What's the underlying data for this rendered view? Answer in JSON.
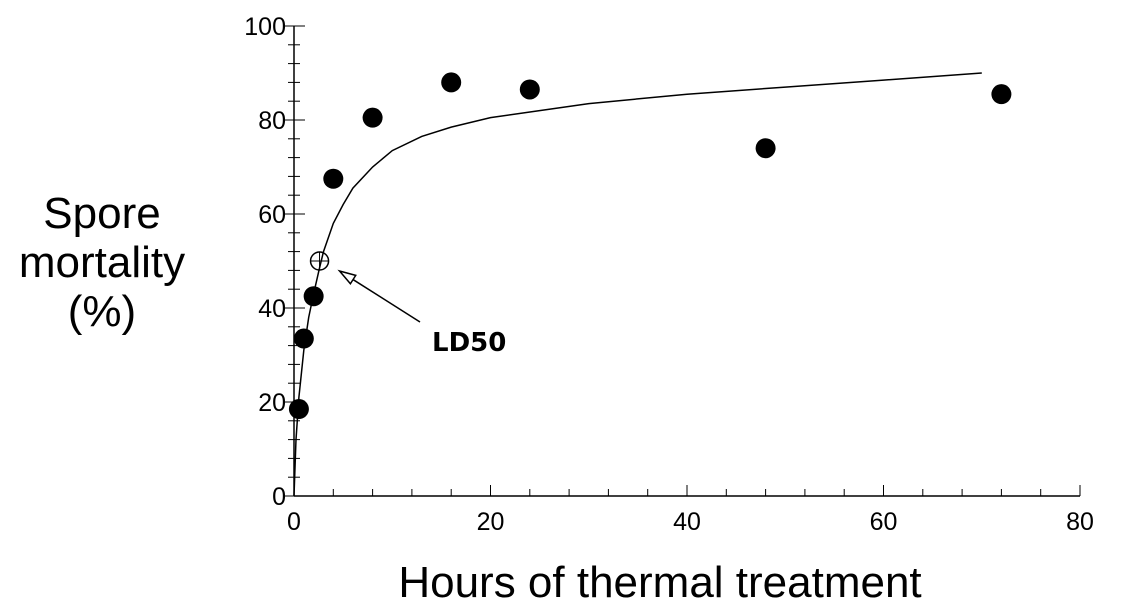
{
  "chart_data": {
    "type": "scatter",
    "title": "",
    "xlabel": "Hours of thermal treatment",
    "ylabel_lines": [
      "Spore",
      "mortality",
      "(%)"
    ],
    "xlim": [
      0,
      80
    ],
    "ylim": [
      0,
      100
    ],
    "x_ticks": [
      "0",
      "20",
      "40",
      "60",
      "80"
    ],
    "y_ticks": [
      "0",
      "20",
      "40",
      "60",
      "80",
      "100"
    ],
    "x_minor_step": 4,
    "y_minor_step": 4,
    "grid": false,
    "legend": "none",
    "series": [
      {
        "points": [
          {
            "x": 0.5,
            "y": 18.5
          },
          {
            "x": 1,
            "y": 33.5
          },
          {
            "x": 2,
            "y": 42.5
          },
          {
            "x": 4,
            "y": 67.5
          },
          {
            "x": 8,
            "y": 80.5
          },
          {
            "x": 16,
            "y": 88
          },
          {
            "x": 24,
            "y": 86.5
          },
          {
            "x": 48,
            "y": 74
          },
          {
            "x": 72,
            "y": 85.5
          }
        ]
      }
    ],
    "fit_curve": {
      "points": [
        {
          "x": 0,
          "y": 0
        },
        {
          "x": 0.2,
          "y": 12
        },
        {
          "x": 0.5,
          "y": 21
        },
        {
          "x": 1,
          "y": 31
        },
        {
          "x": 1.5,
          "y": 38
        },
        {
          "x": 2,
          "y": 43
        },
        {
          "x": 2.6,
          "y": 48.5
        },
        {
          "x": 3,
          "y": 52
        },
        {
          "x": 4,
          "y": 58
        },
        {
          "x": 5,
          "y": 62
        },
        {
          "x": 6,
          "y": 65.5
        },
        {
          "x": 8,
          "y": 70
        },
        {
          "x": 10,
          "y": 73.5
        },
        {
          "x": 13,
          "y": 76.5
        },
        {
          "x": 16,
          "y": 78.5
        },
        {
          "x": 20,
          "y": 80.5
        },
        {
          "x": 25,
          "y": 82
        },
        {
          "x": 30,
          "y": 83.5
        },
        {
          "x": 40,
          "y": 85.5
        },
        {
          "x": 50,
          "y": 87
        },
        {
          "x": 60,
          "y": 88.5
        },
        {
          "x": 70,
          "y": 90
        }
      ]
    },
    "annotations": [
      {
        "text": "LD50",
        "marker": {
          "x": 2.6,
          "y": 50
        }
      }
    ]
  },
  "colors": {
    "ink": "#000000",
    "background": "#ffffff"
  }
}
